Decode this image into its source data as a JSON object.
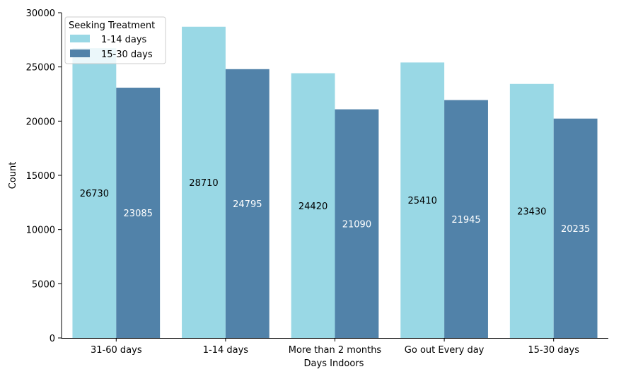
{
  "chart_data": {
    "type": "bar",
    "categories": [
      "31-60 days",
      "1-14 days",
      "More than 2 months",
      "Go out Every day",
      "15-30 days"
    ],
    "series": [
      {
        "name": "1-14 days",
        "values": [
          26730,
          28710,
          24420,
          25410,
          23430
        ],
        "color": "#99d8e5",
        "label_color": "#000000"
      },
      {
        "name": "15-30 days",
        "values": [
          23085,
          24795,
          21090,
          21945,
          20235
        ],
        "color": "#5182a9",
        "label_color": "#ffffff"
      }
    ],
    "title": "",
    "xlabel": "Days Indoors",
    "ylabel": "Count",
    "ylim": [
      0,
      30000
    ],
    "yticks": [
      0,
      5000,
      10000,
      15000,
      20000,
      25000,
      30000
    ],
    "grid": false,
    "legend": {
      "title": "Seeking Treatment",
      "placement": "top-left"
    }
  }
}
